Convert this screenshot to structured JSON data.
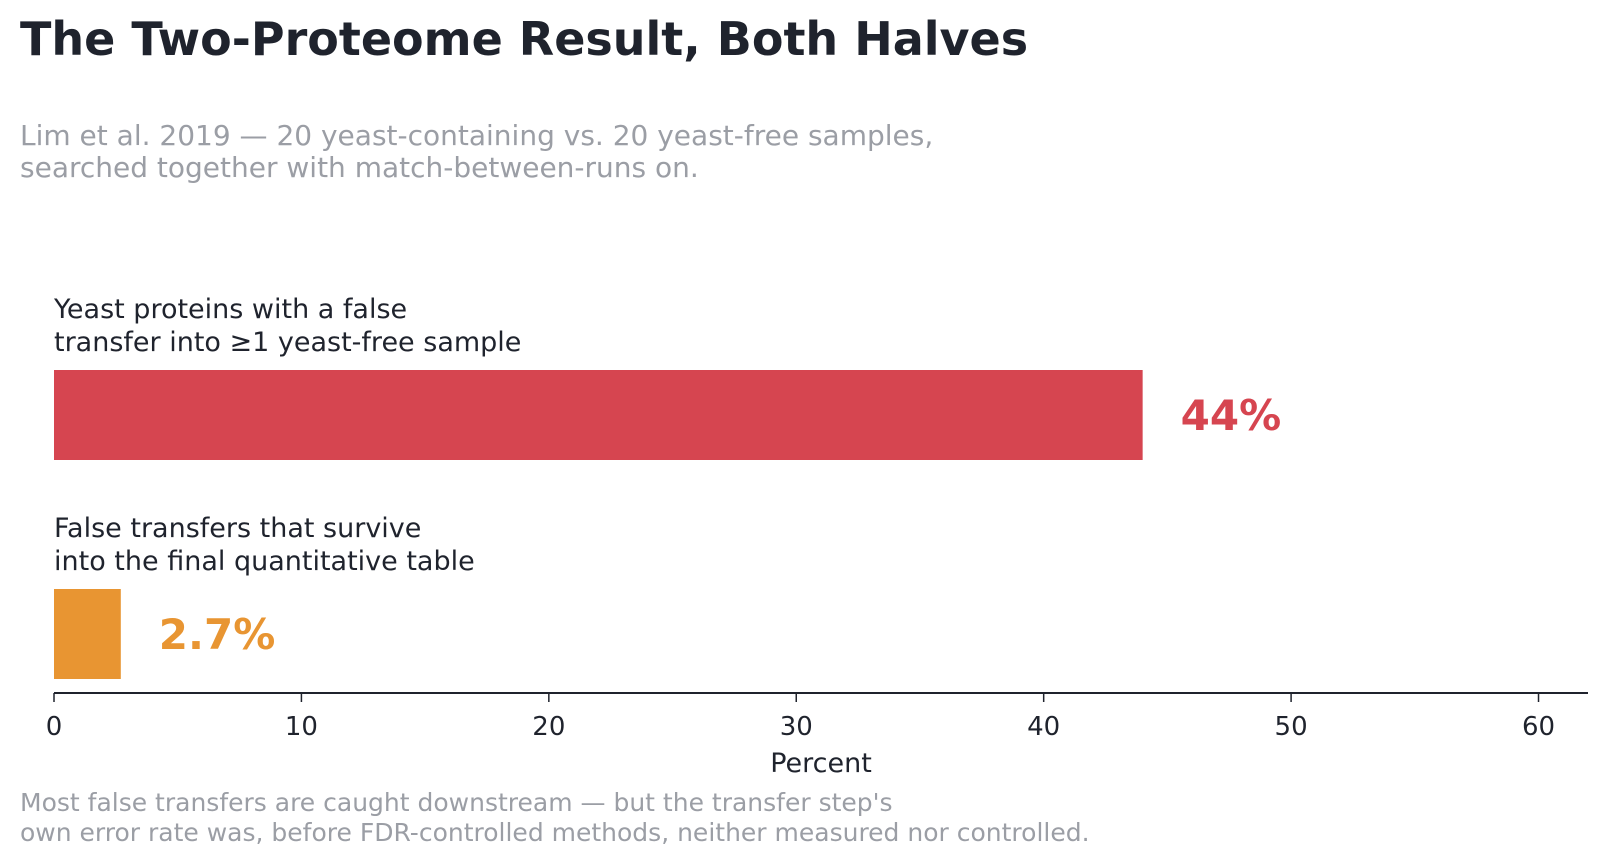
{
  "title": "The Two-Proteome Result, Both Halves",
  "subtitle_lines": [
    "Lim et al. 2019 — 20 yeast-containing vs. 20 yeast-free samples,",
    "searched together with match-between-runs on."
  ],
  "footnote_lines": [
    "Most false transfers are caught downstream — but the transfer step's",
    "own error rate was, before FDR-controlled methods, neither measured nor controlled."
  ],
  "colors": {
    "bar1": "#d64550",
    "bar2": "#e89532",
    "text": "#1f232d",
    "muted": "#9b9ea5",
    "axis": "#1f232d"
  },
  "chart_data": {
    "type": "bar",
    "orientation": "horizontal",
    "categories": [
      [
        "Yeast proteins with a false",
        "transfer into ≥1 yeast-free sample"
      ],
      [
        "False transfers that survive",
        "into the final quantitative table"
      ]
    ],
    "values": [
      44,
      2.7
    ],
    "value_labels": [
      "44%",
      "2.7%"
    ],
    "bar_colors": [
      "#d64550",
      "#e89532"
    ],
    "xlabel": "Percent",
    "xlim": [
      0,
      62
    ],
    "xticks": [
      0,
      10,
      20,
      30,
      40,
      50,
      60
    ],
    "grid": false
  }
}
